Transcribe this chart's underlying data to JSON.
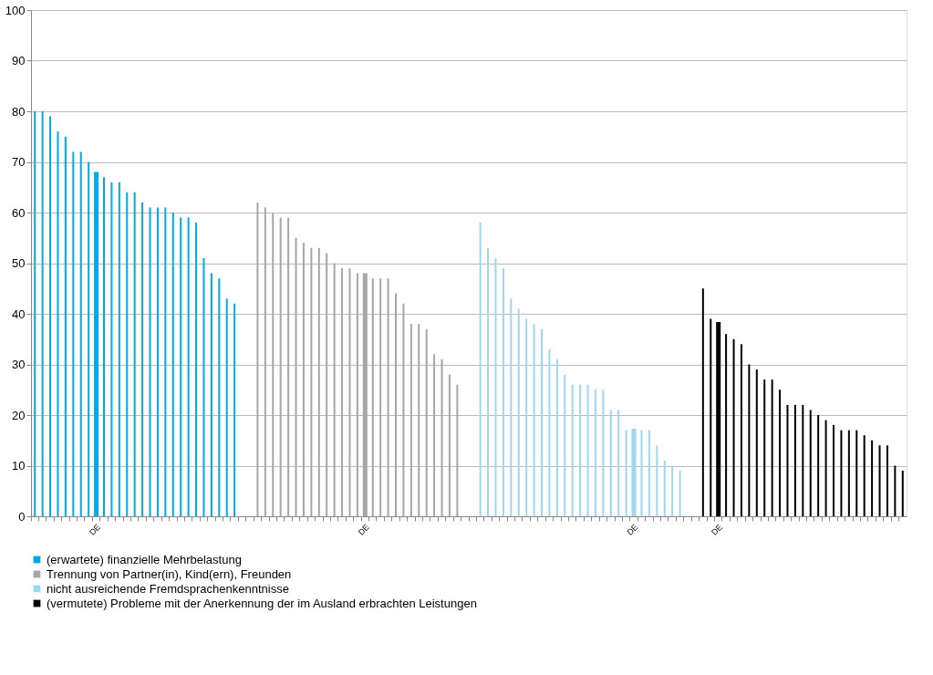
{
  "chart_data": {
    "type": "bar",
    "categories": [
      null,
      null,
      null,
      null,
      null,
      null,
      null,
      null,
      "DE",
      null,
      null,
      null,
      null,
      null,
      null,
      null,
      null,
      null,
      null,
      null,
      null,
      null,
      null,
      null,
      null,
      null,
      null,
      null,
      null,
      null,
      null,
      null,
      null,
      null,
      null,
      null,
      null,
      null,
      null,
      null,
      null,
      null,
      null,
      "DE",
      null,
      null,
      null,
      null,
      null,
      null,
      null,
      null,
      null,
      null,
      null,
      null,
      null,
      null,
      null,
      null,
      null,
      null,
      null,
      null,
      null,
      null,
      null,
      null,
      null,
      null,
      null,
      null,
      null,
      null,
      null,
      null,
      null,
      null,
      "DE",
      null,
      null,
      null,
      null,
      null,
      null,
      null,
      null,
      null,
      null,
      "DE",
      null,
      null,
      null,
      null,
      null,
      null,
      null,
      null,
      null,
      null,
      null,
      null,
      null,
      null,
      null,
      null,
      null,
      null,
      null,
      null,
      null,
      null,
      null,
      null
    ],
    "series": [
      {
        "name": "(erwartete) finanzielle Mehrbelastung",
        "color": "#00a9e8",
        "values": [
          80,
          80,
          79,
          76,
          75,
          72,
          72,
          70,
          68,
          67,
          66,
          66,
          64,
          64,
          62,
          61,
          61,
          61,
          60,
          59,
          59,
          58,
          51,
          48,
          47,
          43,
          42,
          null,
          null,
          null,
          null,
          null,
          null,
          null,
          null,
          null,
          null,
          null,
          null,
          null,
          null,
          null,
          null,
          null,
          null,
          null,
          null,
          null,
          null,
          null,
          null,
          null,
          null,
          null,
          null,
          null,
          null,
          null,
          null,
          null,
          null,
          null,
          null,
          null,
          null,
          null,
          null,
          null,
          null,
          null,
          null,
          null,
          null,
          null,
          null,
          null,
          null,
          null,
          null,
          null,
          null,
          null,
          null,
          null,
          null,
          null,
          null,
          null,
          null,
          null,
          null,
          null,
          null,
          null,
          null,
          null,
          null,
          null,
          null,
          null,
          null,
          null,
          null,
          null,
          null,
          null,
          null,
          null,
          null,
          null,
          null,
          null,
          null,
          null
        ]
      },
      {
        "name": "Trennung von Partner(in), Kind(ern), Freunden",
        "color": "#a6a6a6",
        "values": [
          null,
          null,
          null,
          null,
          null,
          null,
          null,
          null,
          null,
          null,
          null,
          null,
          null,
          null,
          null,
          null,
          null,
          null,
          null,
          null,
          null,
          null,
          null,
          null,
          null,
          null,
          null,
          null,
          null,
          62,
          61,
          60,
          59,
          59,
          55,
          54,
          53,
          53,
          52,
          50,
          49,
          49,
          48,
          48,
          47,
          47,
          47,
          44,
          42,
          38,
          38,
          37,
          32,
          31,
          28,
          26,
          null,
          null,
          null,
          null,
          null,
          null,
          null,
          null,
          null,
          null,
          null,
          null,
          null,
          null,
          null,
          null,
          null,
          null,
          null,
          null,
          null,
          null,
          null,
          null,
          null,
          null,
          null,
          null,
          null,
          null,
          null,
          null,
          null,
          null,
          null,
          null,
          null,
          null,
          null,
          null,
          null,
          null,
          null,
          null,
          null,
          null,
          null,
          null,
          null,
          null,
          null,
          null,
          null,
          null,
          null,
          null,
          null,
          null
        ]
      },
      {
        "name": "nicht ausreichende Fremdsprachenkenntnisse",
        "color": "#9dd8f2",
        "values": [
          null,
          null,
          null,
          null,
          null,
          null,
          null,
          null,
          null,
          null,
          null,
          null,
          null,
          null,
          null,
          null,
          null,
          null,
          null,
          null,
          null,
          null,
          null,
          null,
          null,
          null,
          null,
          null,
          null,
          null,
          null,
          null,
          null,
          null,
          null,
          null,
          null,
          null,
          null,
          null,
          null,
          null,
          null,
          null,
          null,
          null,
          null,
          null,
          null,
          null,
          null,
          null,
          null,
          null,
          null,
          null,
          null,
          null,
          58,
          53,
          51,
          49,
          43,
          41,
          39,
          38,
          37,
          33,
          31,
          28,
          26,
          26,
          26,
          25,
          25,
          21,
          21,
          17,
          17.3,
          17,
          17,
          14,
          11,
          10,
          9,
          null,
          null,
          null,
          null,
          null,
          null,
          null,
          null,
          null,
          null,
          null,
          null,
          null,
          null,
          null,
          null,
          null,
          null,
          null,
          null,
          null,
          null,
          null,
          null,
          null,
          null,
          null,
          null,
          null
        ]
      },
      {
        "name": "(vermutete) Probleme mit der Anerkennung der im Ausland erbrachten Leistungen",
        "color": "#000000",
        "values": [
          null,
          null,
          null,
          null,
          null,
          null,
          null,
          null,
          null,
          null,
          null,
          null,
          null,
          null,
          null,
          null,
          null,
          null,
          null,
          null,
          null,
          null,
          null,
          null,
          null,
          null,
          null,
          null,
          null,
          null,
          null,
          null,
          null,
          null,
          null,
          null,
          null,
          null,
          null,
          null,
          null,
          null,
          null,
          null,
          null,
          null,
          null,
          null,
          null,
          null,
          null,
          null,
          null,
          null,
          null,
          null,
          null,
          null,
          null,
          null,
          null,
          null,
          null,
          null,
          null,
          null,
          null,
          null,
          null,
          null,
          null,
          null,
          null,
          null,
          null,
          null,
          null,
          null,
          null,
          null,
          null,
          null,
          null,
          null,
          null,
          null,
          null,
          45,
          39,
          38.4,
          36,
          35,
          34,
          30,
          29,
          27,
          27,
          25,
          22,
          22,
          22,
          21,
          20,
          19,
          18,
          17,
          17,
          17,
          16,
          15,
          14,
          14,
          10,
          9
        ]
      }
    ],
    "ylim": [
      0,
      100
    ],
    "yticks": [
      0,
      10,
      20,
      30,
      40,
      50,
      60,
      70,
      80,
      90,
      100
    ],
    "grid": "y",
    "legend": "bottom"
  }
}
